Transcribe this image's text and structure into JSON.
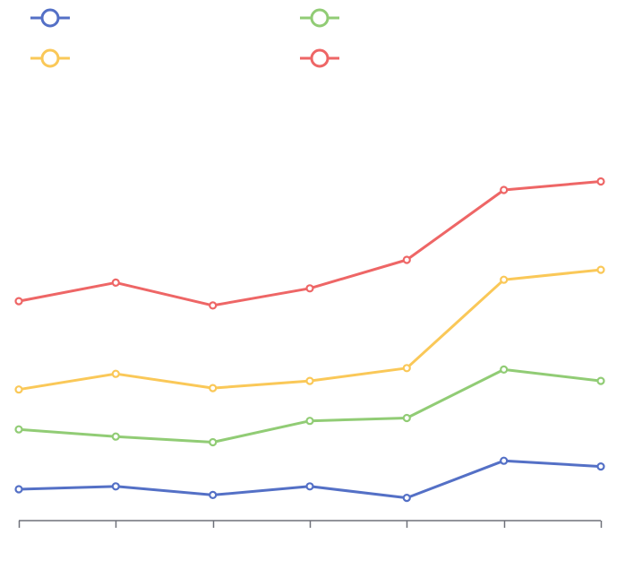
{
  "chart_data": {
    "type": "line",
    "title": "",
    "xlabel": "",
    "ylabel": "",
    "categories": [
      "",
      "",
      "",
      "",
      "",
      "",
      ""
    ],
    "ylim": [
      0,
      130
    ],
    "grid": false,
    "legend": "top-left",
    "series": [
      {
        "color": "#5470c6",
        "values": [
          11,
          12,
          9,
          12,
          8,
          21,
          19
        ]
      },
      {
        "color": "#91cc75",
        "values": [
          32,
          29.5,
          27.5,
          35,
          36,
          53,
          49
        ]
      },
      {
        "color": "#fac858",
        "values": [
          46,
          51.5,
          46.5,
          49,
          53.5,
          84.5,
          88
        ]
      },
      {
        "color": "#ee6666",
        "values": [
          77,
          83.5,
          75.5,
          81.5,
          91.5,
          116,
          119
        ]
      }
    ]
  }
}
